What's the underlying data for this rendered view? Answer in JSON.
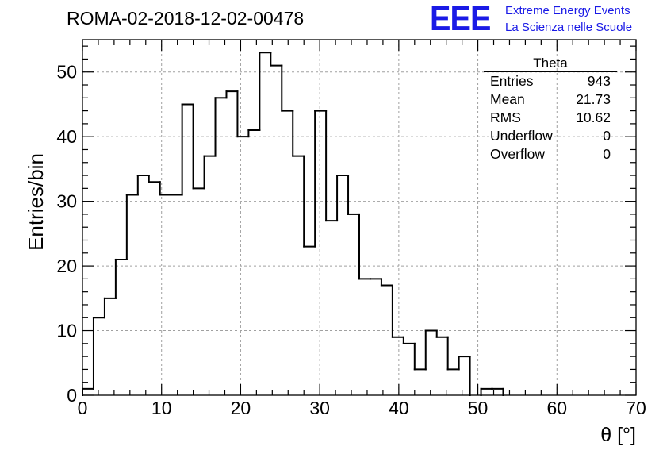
{
  "header": {
    "run_title": "ROMA-02-2018-12-02-00478",
    "logo": "EEE",
    "logo_line1": "Extreme Energy Events",
    "logo_line2": "La Scienza nelle Scuole"
  },
  "stats_box": {
    "title": "Theta",
    "rows": [
      {
        "label": "Entries",
        "value": "943"
      },
      {
        "label": "Mean",
        "value": "21.73"
      },
      {
        "label": "RMS",
        "value": "10.62"
      },
      {
        "label": "Underflow",
        "value": "0"
      },
      {
        "label": "Overflow",
        "value": "0"
      }
    ]
  },
  "chart_data": {
    "type": "bar",
    "style": "step-histogram",
    "title": "ROMA-02-2018-12-02-00478",
    "xlabel": "θ [°]",
    "ylabel": "Entries/bin",
    "xlim": [
      0,
      70
    ],
    "ylim": [
      0,
      55
    ],
    "bin_width": 1.4,
    "x_ticks": [
      0,
      10,
      20,
      30,
      40,
      50,
      60,
      70
    ],
    "y_ticks": [
      0,
      10,
      20,
      30,
      40,
      50
    ],
    "grid": true,
    "values": [
      1,
      12,
      15,
      21,
      31,
      34,
      33,
      31,
      31,
      45,
      32,
      37,
      46,
      47,
      40,
      41,
      53,
      51,
      44,
      37,
      23,
      44,
      27,
      34,
      28,
      18,
      18,
      17,
      9,
      8,
      4,
      10,
      9,
      4,
      6,
      0,
      1,
      1,
      0,
      0,
      0,
      0,
      0,
      0,
      0,
      0,
      0,
      0,
      0,
      0
    ],
    "colors": {
      "line": "#000000",
      "grid": "#a0a0a0"
    }
  }
}
